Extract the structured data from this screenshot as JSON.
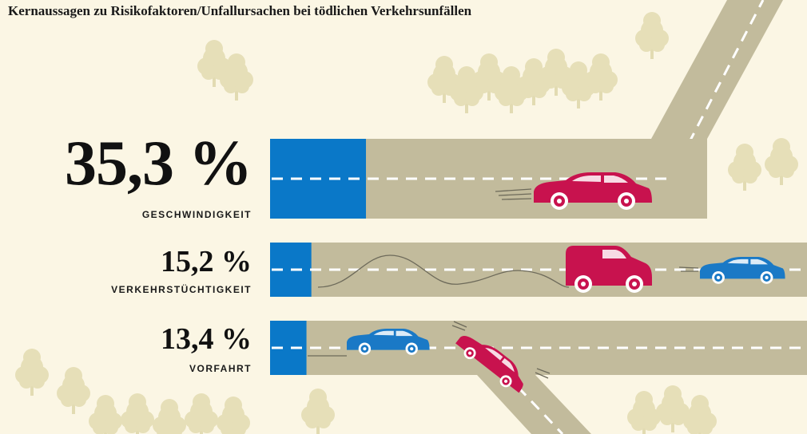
{
  "title": "Kernaussagen zu Risikofaktoren/Unfallursachen bei tödlichen Verkehrsunfällen",
  "colors": {
    "background": "#fbf6e4",
    "road": "#c2bb9c",
    "bar": "#0a78c8",
    "lane_marking": "#ffffff",
    "car_red": "#c8124e",
    "car_blue": "#1a79c6",
    "tree": "#e6dfb8"
  },
  "chart_data": {
    "type": "bar",
    "orientation": "horizontal",
    "categories": [
      "GESCHWINDIGKEIT",
      "VERKEHRSTÜCHTIGKEIT",
      "VORFAHRT"
    ],
    "values": [
      35.3,
      15.2,
      13.4
    ],
    "value_labels": [
      "35,3 %",
      "15,2 %",
      "13,4 %"
    ],
    "unit": "%",
    "title": "Kernaussagen zu Risikofaktoren/Unfallursachen bei tödlichen Verkehrsunfällen",
    "xlabel": "",
    "ylabel": "",
    "grid": false,
    "legend": "none"
  }
}
